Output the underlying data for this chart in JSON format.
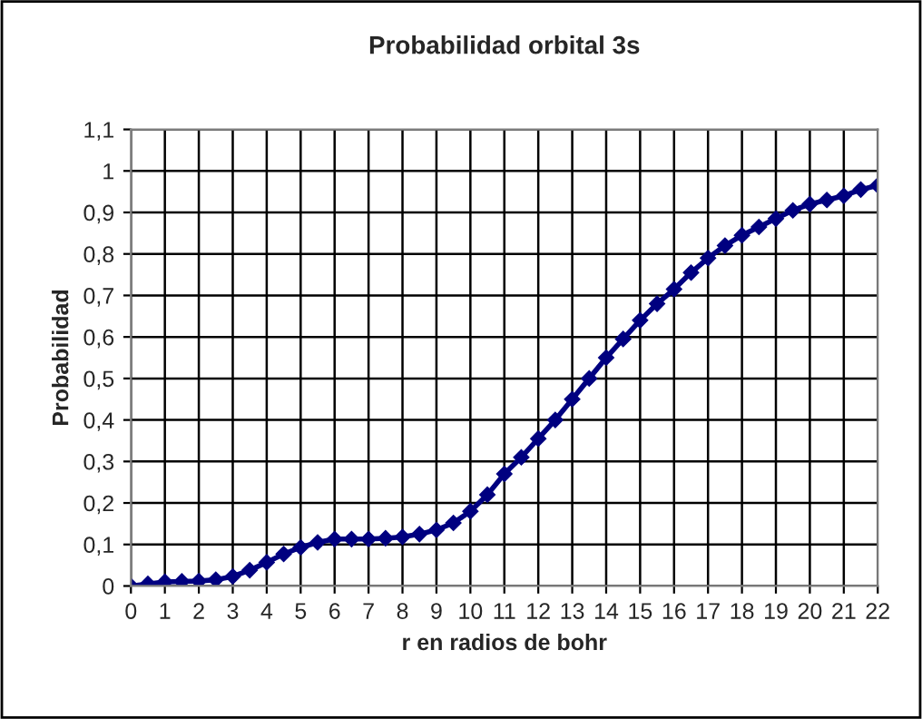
{
  "chart_data": {
    "type": "line",
    "title": "Probabilidad orbital 3s",
    "xlabel": "r en radios de bohr",
    "ylabel": "Probabilidad",
    "x": [
      0,
      0.5,
      1,
      1.5,
      2,
      2.5,
      3,
      3.5,
      4,
      4.5,
      5,
      5.5,
      6,
      6.5,
      7,
      7.5,
      8,
      8.5,
      9,
      9.5,
      10,
      10.5,
      11,
      11.5,
      12,
      12.5,
      13,
      13.5,
      14,
      14.5,
      15,
      15.5,
      16,
      16.5,
      17,
      17.5,
      18,
      18.5,
      19,
      19.5,
      20,
      20.5,
      21,
      21.5,
      22
    ],
    "series": [
      {
        "color": "#000080",
        "values": [
          0,
          0.005,
          0.01,
          0.011,
          0.012,
          0.015,
          0.023,
          0.038,
          0.057,
          0.077,
          0.093,
          0.105,
          0.113,
          0.113,
          0.113,
          0.115,
          0.118,
          0.125,
          0.135,
          0.152,
          0.18,
          0.22,
          0.27,
          0.31,
          0.355,
          0.4,
          0.45,
          0.5,
          0.55,
          0.595,
          0.64,
          0.68,
          0.715,
          0.755,
          0.79,
          0.82,
          0.845,
          0.865,
          0.885,
          0.905,
          0.92,
          0.93,
          0.94,
          0.955,
          0.965
        ]
      }
    ],
    "xlim": [
      0,
      22
    ],
    "xticks": [
      0,
      1,
      2,
      3,
      4,
      5,
      6,
      7,
      8,
      9,
      10,
      11,
      12,
      13,
      14,
      15,
      16,
      17,
      18,
      19,
      20,
      21,
      22
    ],
    "ylim": [
      0,
      1.1
    ],
    "yticks": [
      0,
      {
        "value": 0.1,
        "label": "0,1"
      },
      {
        "value": 0.2,
        "label": "0,2"
      },
      {
        "value": 0.3,
        "label": "0,3"
      },
      {
        "value": 0.4,
        "label": "0,4"
      },
      {
        "value": 0.5,
        "label": "0,5"
      },
      {
        "value": 0.6,
        "label": "0,6"
      },
      {
        "value": 0.7,
        "label": "0,7"
      },
      {
        "value": 0.8,
        "label": "0,8"
      },
      {
        "value": 0.9,
        "label": "0,9"
      },
      1,
      {
        "value": 1.1,
        "label": "1,1"
      }
    ],
    "grid": true,
    "marker": "diamond",
    "line_style": "solid"
  }
}
